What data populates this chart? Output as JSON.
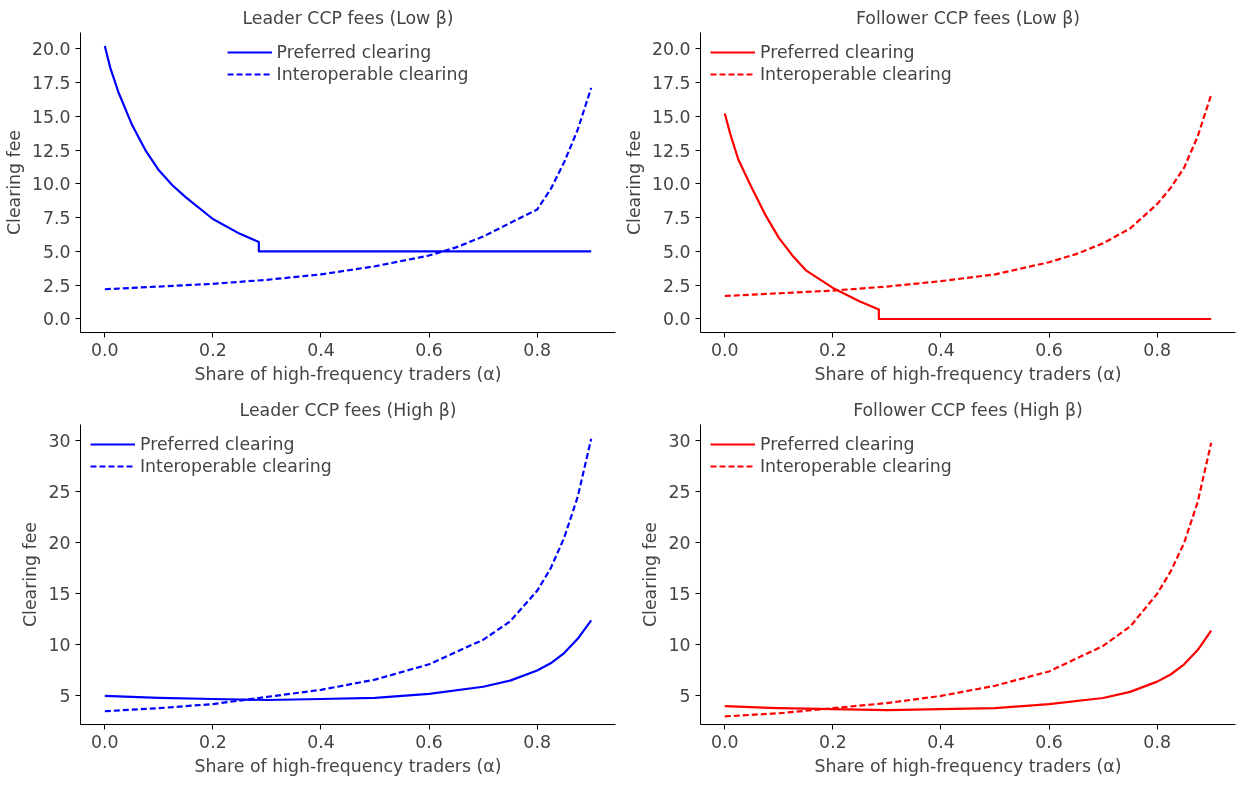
{
  "chart_data": [
    {
      "type": "line",
      "title": "Leader CCP fees (Low β)",
      "xlabel": "Share of high-frequency traders (α)",
      "ylabel": "Clearing fee",
      "legend": "top",
      "grid": false,
      "xlim": [
        -0.045,
        0.945
      ],
      "ylim": [
        -1.0,
        21.2
      ],
      "xticks": [
        {
          "value": 0,
          "label": "0.0"
        },
        {
          "value": 0.2,
          "label": "0.2"
        },
        {
          "value": 0.4,
          "label": "0.4"
        },
        {
          "value": 0.6,
          "label": "0.6"
        },
        {
          "value": 0.8,
          "label": "0.8"
        }
      ],
      "yticks": [
        {
          "value": 0,
          "label": "0.0"
        },
        2.5,
        {
          "value": 5,
          "label": "5.0"
        },
        7.5,
        {
          "value": 10,
          "label": "10.0"
        },
        12.5,
        {
          "value": 15,
          "label": "15.0"
        },
        17.5,
        {
          "value": 20,
          "label": "20.0"
        }
      ],
      "series": [
        {
          "name": "Preferred clearing",
          "color": "#0000ff",
          "line_style": "solid",
          "x": [
            0,
            0.01,
            0.025,
            0.05,
            0.075,
            0.1,
            0.125,
            0.15,
            0.2,
            0.25,
            0.285,
            0.285,
            0.4,
            0.6,
            0.9
          ],
          "values": [
            20.2,
            18.6,
            16.8,
            14.4,
            12.5,
            11.0,
            9.9,
            9.0,
            7.4,
            6.3,
            5.7,
            5.0,
            5.0,
            5.0,
            5.0
          ]
        },
        {
          "name": "Interoperable clearing",
          "color": "#0000ff",
          "line_style": "dashed",
          "x": [
            0,
            0.1,
            0.2,
            0.3,
            0.4,
            0.5,
            0.6,
            0.65,
            0.7,
            0.75,
            0.8,
            0.825,
            0.85,
            0.875,
            0.9
          ],
          "values": [
            2.2,
            2.4,
            2.6,
            2.9,
            3.3,
            3.9,
            4.7,
            5.3,
            6.1,
            7.1,
            8.1,
            9.6,
            11.6,
            14.0,
            17.1
          ]
        }
      ]
    },
    {
      "type": "line",
      "title": "Follower CCP fees (Low β)",
      "xlabel": "Share of high-frequency traders (α)",
      "ylabel": "Clearing fee",
      "legend": "top left",
      "grid": false,
      "xlim": [
        -0.045,
        0.945
      ],
      "ylim": [
        -1.0,
        21.2
      ],
      "xticks": [
        {
          "value": 0,
          "label": "0.0"
        },
        {
          "value": 0.2,
          "label": "0.2"
        },
        {
          "value": 0.4,
          "label": "0.4"
        },
        {
          "value": 0.6,
          "label": "0.6"
        },
        {
          "value": 0.8,
          "label": "0.8"
        }
      ],
      "yticks": [
        {
          "value": 0,
          "label": "0.0"
        },
        2.5,
        {
          "value": 5,
          "label": "5.0"
        },
        7.5,
        {
          "value": 10,
          "label": "10.0"
        },
        12.5,
        {
          "value": 15,
          "label": "15.0"
        },
        17.5,
        {
          "value": 20,
          "label": "20.0"
        }
      ],
      "series": [
        {
          "name": "Preferred clearing",
          "color": "#ff0000",
          "line_style": "solid",
          "x": [
            0,
            0.01,
            0.025,
            0.05,
            0.075,
            0.1,
            0.125,
            0.15,
            0.2,
            0.25,
            0.285,
            0.285,
            0.4,
            0.6,
            0.9
          ],
          "values": [
            15.2,
            13.7,
            11.8,
            9.7,
            7.7,
            6.0,
            4.7,
            3.6,
            2.3,
            1.3,
            0.7,
            0,
            0,
            0,
            0
          ]
        },
        {
          "name": "Interoperable clearing",
          "color": "#ff0000",
          "line_style": "dashed",
          "x": [
            0,
            0.1,
            0.2,
            0.3,
            0.4,
            0.5,
            0.6,
            0.65,
            0.7,
            0.75,
            0.8,
            0.825,
            0.85,
            0.875,
            0.9
          ],
          "values": [
            1.7,
            1.9,
            2.1,
            2.4,
            2.8,
            3.3,
            4.2,
            4.8,
            5.6,
            6.7,
            8.5,
            9.7,
            11.2,
            13.5,
            16.6
          ]
        }
      ]
    },
    {
      "type": "line",
      "title": "Leader CCP fees (High β)",
      "xlabel": "Share of high-frequency traders (α)",
      "ylabel": "Clearing fee",
      "legend": "top left",
      "grid": false,
      "xlim": [
        -0.045,
        0.945
      ],
      "ylim": [
        2.2,
        31.6
      ],
      "xticks": [
        {
          "value": 0,
          "label": "0.0"
        },
        {
          "value": 0.2,
          "label": "0.2"
        },
        {
          "value": 0.4,
          "label": "0.4"
        },
        {
          "value": 0.6,
          "label": "0.6"
        },
        {
          "value": 0.8,
          "label": "0.8"
        }
      ],
      "yticks": [
        5,
        10,
        15,
        20,
        25,
        30
      ],
      "series": [
        {
          "name": "Preferred clearing",
          "color": "#0000ff",
          "line_style": "solid",
          "x": [
            0,
            0.1,
            0.2,
            0.3,
            0.4,
            0.5,
            0.6,
            0.7,
            0.75,
            0.8,
            0.825,
            0.85,
            0.875,
            0.9
          ],
          "values": [
            5.0,
            4.8,
            4.7,
            4.6,
            4.7,
            4.8,
            5.2,
            5.9,
            6.5,
            7.5,
            8.2,
            9.2,
            10.6,
            12.4
          ]
        },
        {
          "name": "Interoperable clearing",
          "color": "#0000ff",
          "line_style": "dashed",
          "x": [
            0,
            0.1,
            0.2,
            0.3,
            0.4,
            0.5,
            0.6,
            0.7,
            0.75,
            0.8,
            0.825,
            0.85,
            0.875,
            0.9
          ],
          "values": [
            3.5,
            3.8,
            4.2,
            4.9,
            5.6,
            6.6,
            8.1,
            10.5,
            12.3,
            15.3,
            17.5,
            20.5,
            24.5,
            30.2
          ]
        }
      ]
    },
    {
      "type": "line",
      "title": "Follower CCP fees (High β)",
      "xlabel": "Share of high-frequency traders (α)",
      "ylabel": "Clearing fee",
      "legend": "top left",
      "grid": false,
      "xlim": [
        -0.045,
        0.945
      ],
      "ylim": [
        2.2,
        31.6
      ],
      "xticks": [
        {
          "value": 0,
          "label": "0.0"
        },
        {
          "value": 0.2,
          "label": "0.2"
        },
        {
          "value": 0.4,
          "label": "0.4"
        },
        {
          "value": 0.6,
          "label": "0.6"
        },
        {
          "value": 0.8,
          "label": "0.8"
        }
      ],
      "yticks": [
        5,
        10,
        15,
        20,
        25,
        30
      ],
      "series": [
        {
          "name": "Preferred clearing",
          "color": "#ff0000",
          "line_style": "solid",
          "x": [
            0,
            0.1,
            0.2,
            0.3,
            0.4,
            0.5,
            0.6,
            0.7,
            0.75,
            0.8,
            0.825,
            0.85,
            0.875,
            0.9
          ],
          "values": [
            4.0,
            3.8,
            3.7,
            3.6,
            3.7,
            3.8,
            4.2,
            4.8,
            5.4,
            6.4,
            7.1,
            8.1,
            9.5,
            11.4
          ]
        },
        {
          "name": "Interoperable clearing",
          "color": "#ff0000",
          "line_style": "dashed",
          "x": [
            0,
            0.1,
            0.2,
            0.3,
            0.4,
            0.5,
            0.6,
            0.7,
            0.75,
            0.8,
            0.825,
            0.85,
            0.875,
            0.9
          ],
          "values": [
            3.0,
            3.3,
            3.8,
            4.3,
            5.0,
            6.0,
            7.4,
            9.9,
            11.8,
            15.0,
            17.2,
            20.0,
            24.0,
            29.8
          ]
        }
      ]
    }
  ]
}
